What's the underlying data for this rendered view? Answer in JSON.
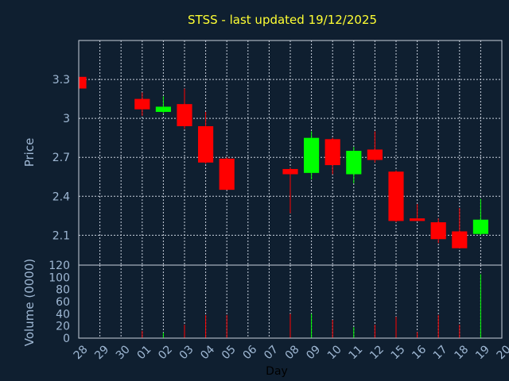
{
  "chart_data": {
    "type": "candlestick",
    "title": "STSS - last updated 19/12/2025",
    "xlabel": "Day",
    "price_ylabel": "Price",
    "volume_ylabel": "Volume (0000)",
    "days": [
      "28",
      "29",
      "30",
      "01",
      "02",
      "03",
      "04",
      "05",
      "06",
      "07",
      "08",
      "09",
      "10",
      "11",
      "12",
      "15",
      "16",
      "17",
      "18",
      "19",
      "20"
    ],
    "price_ylim": [
      1.87,
      3.6
    ],
    "price_yticks": [
      2.1,
      2.4,
      2.7,
      3,
      3.3
    ],
    "price_ytick_labels": [
      "2.1",
      "2.4",
      "2.7",
      "3",
      "3.3"
    ],
    "volume_ylim": [
      0,
      120
    ],
    "volume_yticks": [
      0,
      20,
      40,
      60,
      80,
      100,
      120
    ],
    "volume_ytick_labels": [
      "0",
      "20",
      "40",
      "60",
      "80",
      "100",
      "120"
    ],
    "up_color": "#00ff00",
    "down_color": "#ff0000",
    "grid": true,
    "candles": [
      {
        "day": "28",
        "open": 3.32,
        "high": 3.32,
        "low": 3.22,
        "close": 3.23,
        "volume": 0
      },
      {
        "day": "01",
        "open": 3.15,
        "high": 3.2,
        "low": 3.02,
        "close": 3.07,
        "volume": 12
      },
      {
        "day": "02",
        "open": 3.05,
        "high": 3.17,
        "low": 3.04,
        "close": 3.09,
        "volume": 9
      },
      {
        "day": "03",
        "open": 3.11,
        "high": 3.23,
        "low": 2.92,
        "close": 2.94,
        "volume": 22
      },
      {
        "day": "04",
        "open": 2.94,
        "high": 3.05,
        "low": 2.65,
        "close": 2.66,
        "volume": 38
      },
      {
        "day": "05",
        "open": 2.69,
        "high": 2.7,
        "low": 2.45,
        "close": 2.45,
        "volume": 38
      },
      {
        "day": "08",
        "open": 2.61,
        "high": 2.62,
        "low": 2.27,
        "close": 2.57,
        "volume": 40
      },
      {
        "day": "09",
        "open": 2.58,
        "high": 2.9,
        "low": 2.53,
        "close": 2.85,
        "volume": 40
      },
      {
        "day": "10",
        "open": 2.84,
        "high": 2.85,
        "low": 2.57,
        "close": 2.64,
        "volume": 30
      },
      {
        "day": "11",
        "open": 2.57,
        "high": 2.78,
        "low": 2.5,
        "close": 2.75,
        "volume": 18
      },
      {
        "day": "12",
        "open": 2.76,
        "high": 2.9,
        "low": 2.66,
        "close": 2.68,
        "volume": 22
      },
      {
        "day": "15",
        "open": 2.59,
        "high": 2.6,
        "low": 2.2,
        "close": 2.21,
        "volume": 35
      },
      {
        "day": "16",
        "open": 2.23,
        "high": 2.34,
        "low": 2.21,
        "close": 2.21,
        "volume": 10
      },
      {
        "day": "17",
        "open": 2.2,
        "high": 2.23,
        "low": 2.04,
        "close": 2.07,
        "volume": 38
      },
      {
        "day": "18",
        "open": 2.13,
        "high": 2.31,
        "low": 2.0,
        "close": 2.0,
        "volume": 22
      },
      {
        "day": "19",
        "open": 2.11,
        "high": 2.38,
        "low": 2.1,
        "close": 2.22,
        "volume": 105
      }
    ]
  }
}
